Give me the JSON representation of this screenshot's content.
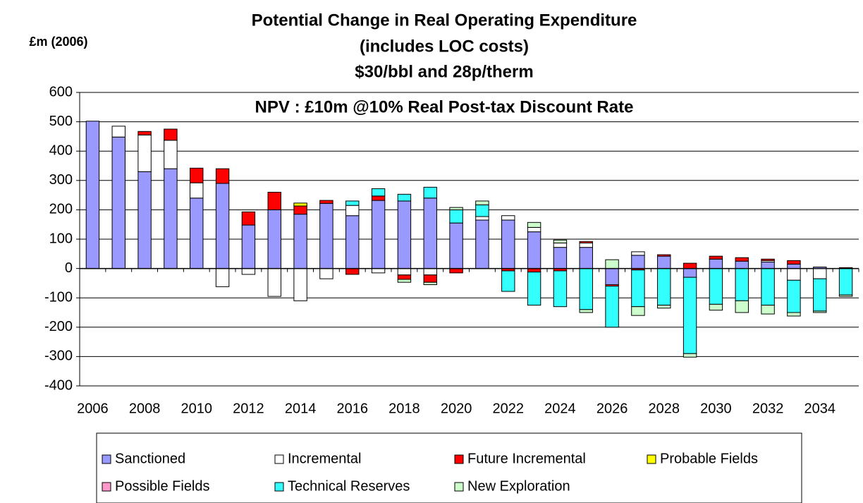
{
  "chart_data": {
    "type": "stacked_bar",
    "title": [
      "Potential Change in Real Operating Expenditure",
      "(includes LOC costs)",
      "$30/bbl and 28p/therm"
    ],
    "subtitle": "NPV : £10m @10% Real Post-tax Discount Rate",
    "y_label": "£m (2006)",
    "categories": [
      "2006",
      null,
      "2008",
      null,
      "2010",
      null,
      "2012",
      null,
      "2014",
      null,
      "2016",
      null,
      "2018",
      null,
      "2020",
      null,
      "2022",
      null,
      "2024",
      null,
      "2026",
      null,
      "2028",
      null,
      "2030",
      null,
      "2032",
      null,
      "2034",
      null
    ],
    "series": [
      {
        "name": "Sanctioned",
        "color": "#9999ff",
        "values": [
          502,
          448,
          330,
          340,
          240,
          290,
          148,
          200,
          185,
          222,
          180,
          232,
          230,
          240,
          155,
          165,
          165,
          125,
          72,
          72,
          -55,
          45,
          42,
          -30,
          32,
          25,
          22,
          15,
          5,
          null
        ]
      },
      {
        "name": "Incremental",
        "color": "#ffffff",
        "values": [
          null,
          37,
          125,
          97,
          52,
          -62,
          -20,
          -95,
          -110,
          -35,
          35,
          -15,
          -22,
          -22,
          null,
          12,
          15,
          15,
          15,
          15,
          null,
          12,
          null,
          null,
          null,
          null,
          5,
          -40,
          -35,
          null
        ]
      },
      {
        "name": "Future Incremental",
        "color": "#ff0000",
        "values": [
          null,
          null,
          12,
          38,
          50,
          50,
          45,
          60,
          28,
          10,
          -20,
          15,
          -15,
          -25,
          -15,
          null,
          -8,
          -12,
          -8,
          5,
          -5,
          -5,
          5,
          18,
          10,
          12,
          5,
          12,
          null,
          3
        ]
      },
      {
        "name": "Probable Fields",
        "color": "#ffff00",
        "values": [
          null,
          null,
          null,
          null,
          null,
          null,
          null,
          null,
          10,
          null,
          null,
          null,
          null,
          null,
          null,
          null,
          null,
          null,
          null,
          null,
          null,
          null,
          null,
          null,
          null,
          null,
          null,
          null,
          null,
          null
        ]
      },
      {
        "name": "Possible Fields",
        "color": "#ff99cc",
        "values": [
          null,
          null,
          null,
          null,
          null,
          null,
          null,
          null,
          null,
          null,
          null,
          null,
          null,
          null,
          null,
          null,
          null,
          null,
          null,
          null,
          null,
          null,
          null,
          null,
          null,
          null,
          null,
          null,
          null,
          null
        ]
      },
      {
        "name": "Technical Reserves",
        "color": "#33ffff",
        "values": [
          null,
          null,
          null,
          null,
          null,
          null,
          null,
          null,
          null,
          null,
          15,
          25,
          23,
          37,
          45,
          40,
          -70,
          -113,
          -122,
          -140,
          -140,
          -125,
          -125,
          -260,
          -122,
          -110,
          -125,
          -110,
          -110,
          -90
        ]
      },
      {
        "name": "New Exploration",
        "color": "#ccffcc",
        "values": [
          null,
          null,
          null,
          null,
          null,
          null,
          null,
          null,
          null,
          null,
          null,
          null,
          -10,
          -8,
          8,
          13,
          null,
          17,
          10,
          -10,
          30,
          -30,
          -10,
          -12,
          -20,
          -40,
          -30,
          -12,
          -5,
          -5
        ]
      }
    ],
    "ylim": [
      -400,
      600
    ],
    "yticks": [
      -400,
      -300,
      -200,
      -100,
      0,
      100,
      200,
      300,
      400,
      500,
      600
    ],
    "negative_tick_color": "#ff0000",
    "grid": true,
    "legend": "bottom"
  }
}
